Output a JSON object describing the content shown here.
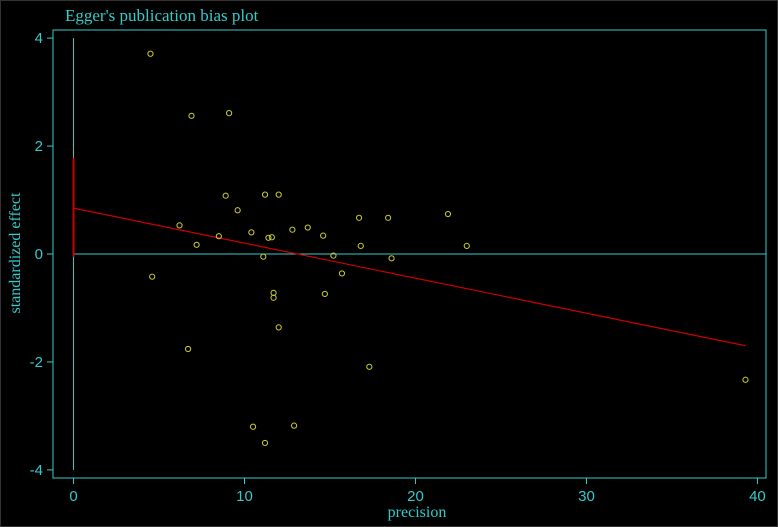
{
  "colors": {
    "background": "#000000",
    "frame": "#33cccc",
    "points": "#cccc33",
    "regression": "#cc0000",
    "ci": "#cc0000"
  },
  "chart_data": {
    "type": "scatter",
    "title": "Egger's publication bias plot",
    "xlabel": "precision",
    "ylabel": "standardized effect",
    "xlim": [
      -1.2,
      40.5
    ],
    "ylim": [
      -4.15,
      4.15
    ],
    "xticks": [
      0,
      10,
      20,
      30,
      40
    ],
    "yticks": [
      -4,
      -2,
      0,
      2,
      4
    ],
    "grid": false,
    "legend": "none",
    "points": [
      {
        "x": 4.5,
        "y": 3.71
      },
      {
        "x": 4.6,
        "y": -0.42
      },
      {
        "x": 6.2,
        "y": 0.53
      },
      {
        "x": 6.7,
        "y": -1.76
      },
      {
        "x": 6.9,
        "y": 2.56
      },
      {
        "x": 7.2,
        "y": 0.17
      },
      {
        "x": 8.5,
        "y": 0.33
      },
      {
        "x": 8.9,
        "y": 1.08
      },
      {
        "x": 9.1,
        "y": 2.61
      },
      {
        "x": 9.6,
        "y": 0.81
      },
      {
        "x": 10.4,
        "y": 0.4
      },
      {
        "x": 10.5,
        "y": -3.2
      },
      {
        "x": 11.1,
        "y": -0.05
      },
      {
        "x": 11.2,
        "y": -3.5
      },
      {
        "x": 11.2,
        "y": 1.1
      },
      {
        "x": 11.4,
        "y": 0.3
      },
      {
        "x": 11.6,
        "y": 0.31
      },
      {
        "x": 11.7,
        "y": -0.72
      },
      {
        "x": 11.7,
        "y": -0.81
      },
      {
        "x": 12.0,
        "y": 1.1
      },
      {
        "x": 12.0,
        "y": -1.36
      },
      {
        "x": 12.8,
        "y": 0.45
      },
      {
        "x": 12.9,
        "y": -3.18
      },
      {
        "x": 13.7,
        "y": 0.49
      },
      {
        "x": 14.6,
        "y": 0.34
      },
      {
        "x": 14.7,
        "y": -0.74
      },
      {
        "x": 15.2,
        "y": -0.03
      },
      {
        "x": 15.7,
        "y": -0.36
      },
      {
        "x": 16.7,
        "y": 0.67
      },
      {
        "x": 16.8,
        "y": 0.15
      },
      {
        "x": 17.3,
        "y": -2.09
      },
      {
        "x": 18.4,
        "y": 0.67
      },
      {
        "x": 18.6,
        "y": -0.08
      },
      {
        "x": 21.9,
        "y": 0.74
      },
      {
        "x": 23.0,
        "y": 0.15
      },
      {
        "x": 39.3,
        "y": -2.33
      }
    ],
    "regression_line": {
      "x": [
        0,
        39.3
      ],
      "y": [
        0.85,
        -1.7
      ]
    },
    "intercept_ci": {
      "x": 0,
      "y": [
        -0.05,
        1.78
      ]
    }
  }
}
